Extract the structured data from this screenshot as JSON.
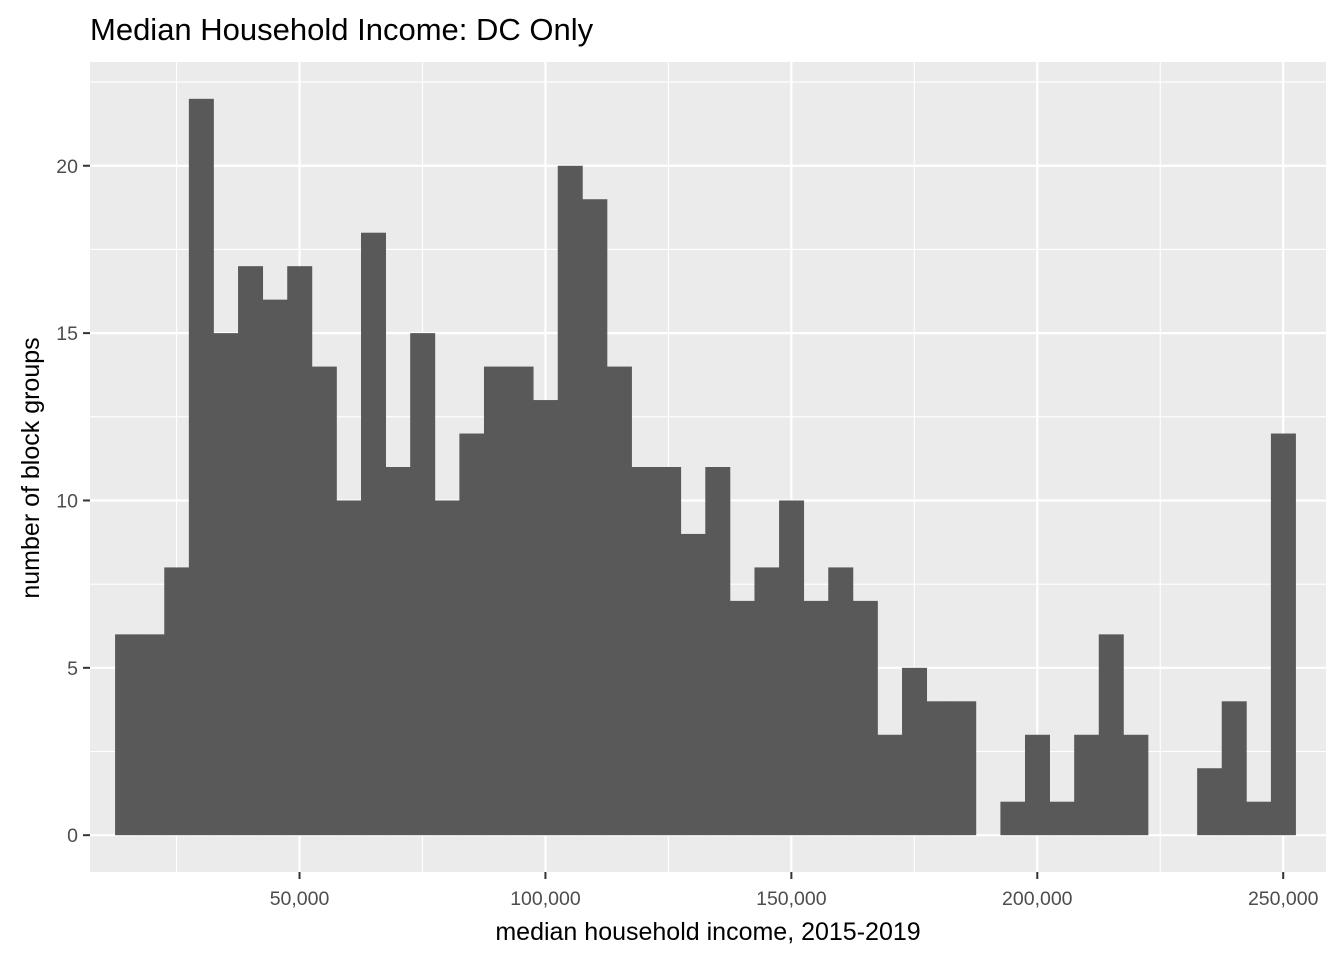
{
  "chart_data": {
    "type": "bar",
    "title": "Median Household Income: DC Only",
    "xlabel": "median household income, 2015-2019",
    "ylabel": "number of block groups",
    "xlim": [
      7400,
      258700
    ],
    "ylim": [
      -1.1,
      23.1
    ],
    "x_ticks": [
      50000,
      100000,
      150000,
      200000,
      250000
    ],
    "x_tick_labels": [
      "50,000",
      "100,000",
      "150,000",
      "200,000",
      "250,000"
    ],
    "y_ticks": [
      0,
      5,
      10,
      15,
      20
    ],
    "y_tick_labels": [
      "0",
      "5",
      "10",
      "15",
      "20"
    ],
    "bin_width": 5000,
    "bin_starts": [
      12500,
      17500,
      22500,
      27500,
      32500,
      37500,
      42500,
      47500,
      52500,
      57500,
      62500,
      67500,
      72500,
      77500,
      82500,
      87500,
      92500,
      97500,
      102500,
      107500,
      112500,
      117500,
      122500,
      127500,
      132500,
      137500,
      142500,
      147500,
      152500,
      157500,
      162500,
      167500,
      172500,
      177500,
      182500,
      187500,
      192500,
      197500,
      202500,
      207500,
      212500,
      217500,
      222500,
      227500,
      232500,
      237500,
      242500,
      247500
    ],
    "values": [
      6,
      6,
      8,
      22,
      15,
      17,
      16,
      17,
      14,
      10,
      18,
      11,
      15,
      10,
      12,
      14,
      14,
      13,
      20,
      19,
      14,
      11,
      11,
      9,
      11,
      7,
      8,
      10,
      7,
      8,
      7,
      3,
      5,
      4,
      4,
      0,
      1,
      3,
      1,
      3,
      6,
      3,
      0,
      0,
      2,
      4,
      1,
      12
    ],
    "bar_color": "#595959",
    "panel_background": "#ebebeb",
    "grid": true,
    "grid_color": "#ffffff",
    "legend": "none"
  }
}
